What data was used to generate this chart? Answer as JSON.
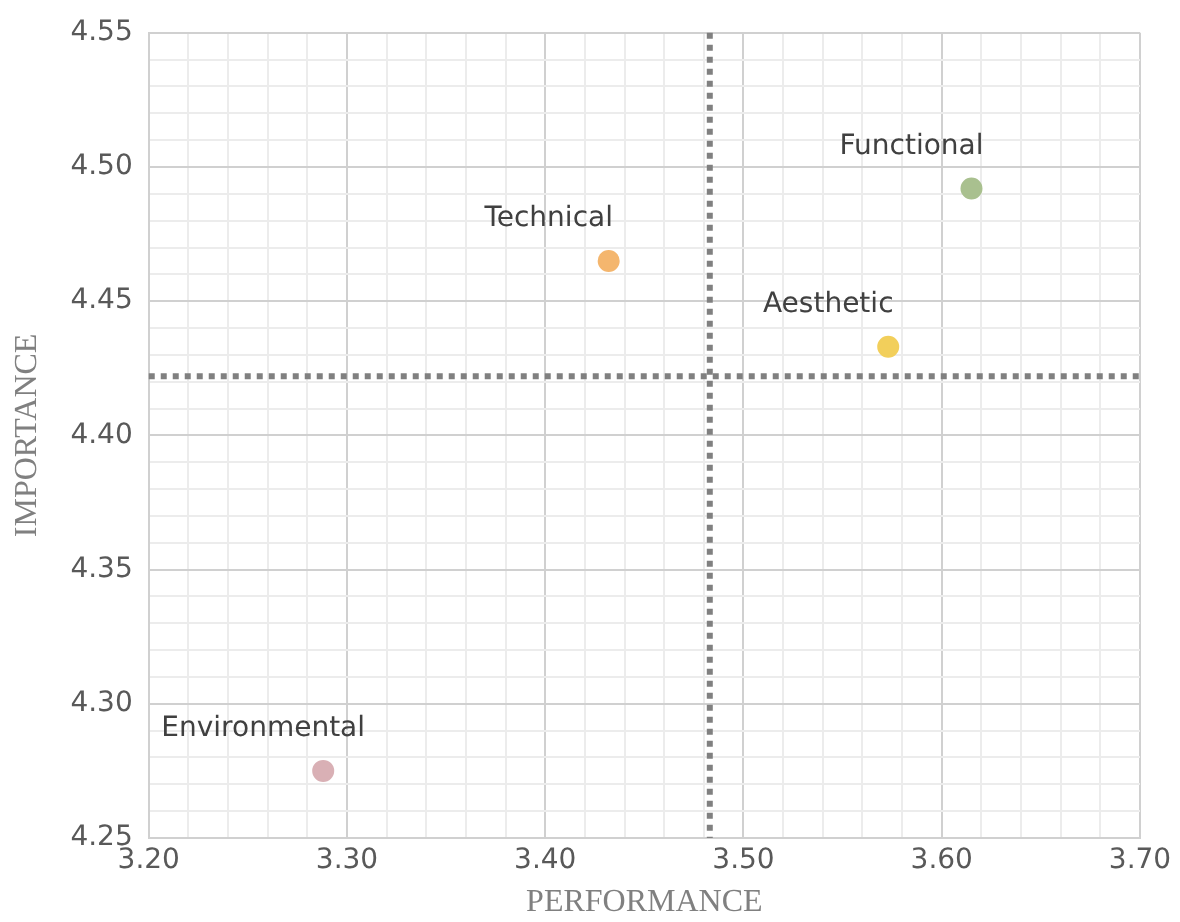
{
  "chart_data": {
    "type": "scatter",
    "xlabel": "PERFORMANCE",
    "ylabel": "IMPORTANCE",
    "xlim": [
      3.2,
      3.7
    ],
    "xticks": [
      {
        "value": 3.2,
        "label": "3.20"
      },
      {
        "value": 3.22,
        "label": null
      },
      {
        "value": 3.24,
        "label": null
      },
      {
        "value": 3.26,
        "label": null
      },
      {
        "value": 3.28,
        "label": null
      },
      {
        "value": 3.3,
        "label": "3.30"
      },
      {
        "value": 3.32,
        "label": null
      },
      {
        "value": 3.34,
        "label": null
      },
      {
        "value": 3.36,
        "label": null
      },
      {
        "value": 3.38,
        "label": null
      },
      {
        "value": 3.4,
        "label": "3.40"
      },
      {
        "value": 3.42,
        "label": null
      },
      {
        "value": 3.44,
        "label": null
      },
      {
        "value": 3.46,
        "label": null
      },
      {
        "value": 3.48,
        "label": null
      },
      {
        "value": 3.5,
        "label": "3.50"
      },
      {
        "value": 3.52,
        "label": null
      },
      {
        "value": 3.54,
        "label": null
      },
      {
        "value": 3.56,
        "label": null
      },
      {
        "value": 3.58,
        "label": null
      },
      {
        "value": 3.6,
        "label": "3.60"
      },
      {
        "value": 3.62,
        "label": null
      },
      {
        "value": 3.64,
        "label": null
      },
      {
        "value": 3.66,
        "label": null
      },
      {
        "value": 3.68,
        "label": null
      },
      {
        "value": 3.7,
        "label": "3.70"
      }
    ],
    "ylim": [
      4.25,
      4.55
    ],
    "yticks": [
      {
        "value": 4.25,
        "label": "4.25"
      },
      {
        "value": 4.26,
        "label": null
      },
      {
        "value": 4.27,
        "label": null
      },
      {
        "value": 4.28,
        "label": null
      },
      {
        "value": 4.29,
        "label": null
      },
      {
        "value": 4.3,
        "label": "4.30"
      },
      {
        "value": 4.31,
        "label": null
      },
      {
        "value": 4.32,
        "label": null
      },
      {
        "value": 4.33,
        "label": null
      },
      {
        "value": 4.34,
        "label": null
      },
      {
        "value": 4.35,
        "label": "4.35"
      },
      {
        "value": 4.36,
        "label": null
      },
      {
        "value": 4.37,
        "label": null
      },
      {
        "value": 4.38,
        "label": null
      },
      {
        "value": 4.39,
        "label": null
      },
      {
        "value": 4.4,
        "label": "4.40"
      },
      {
        "value": 4.41,
        "label": null
      },
      {
        "value": 4.42,
        "label": null
      },
      {
        "value": 4.43,
        "label": null
      },
      {
        "value": 4.44,
        "label": null
      },
      {
        "value": 4.45,
        "label": "4.45"
      },
      {
        "value": 4.46,
        "label": null
      },
      {
        "value": 4.47,
        "label": null
      },
      {
        "value": 4.48,
        "label": null
      },
      {
        "value": 4.49,
        "label": null
      },
      {
        "value": 4.5,
        "label": "4.50"
      },
      {
        "value": 4.51,
        "label": null
      },
      {
        "value": 4.52,
        "label": null
      },
      {
        "value": 4.53,
        "label": null
      },
      {
        "value": 4.54,
        "label": null
      },
      {
        "value": 4.55,
        "label": "4.55"
      }
    ],
    "grid": true,
    "legend": false,
    "marker": "circle",
    "series": [
      {
        "name": "Functional",
        "color": "#a9c08f",
        "x": [
          3.615
        ],
        "values": [
          4.492
        ]
      },
      {
        "name": "Technical",
        "color": "#f4b66e",
        "x": [
          3.432
        ],
        "values": [
          4.465
        ]
      },
      {
        "name": "Aesthetic",
        "color": "#f2cf5b",
        "x": [
          3.573
        ],
        "values": [
          4.433
        ]
      },
      {
        "name": "Environmental",
        "color": "#d9b0b5",
        "x": [
          3.288
        ],
        "values": [
          4.275
        ]
      }
    ],
    "ref_lines": [
      {
        "axis": "x",
        "value": 3.483,
        "color": "#808080",
        "line_style": "dotted"
      },
      {
        "axis": "y",
        "value": 4.422,
        "color": "#808080",
        "line_style": "dotted"
      }
    ]
  }
}
